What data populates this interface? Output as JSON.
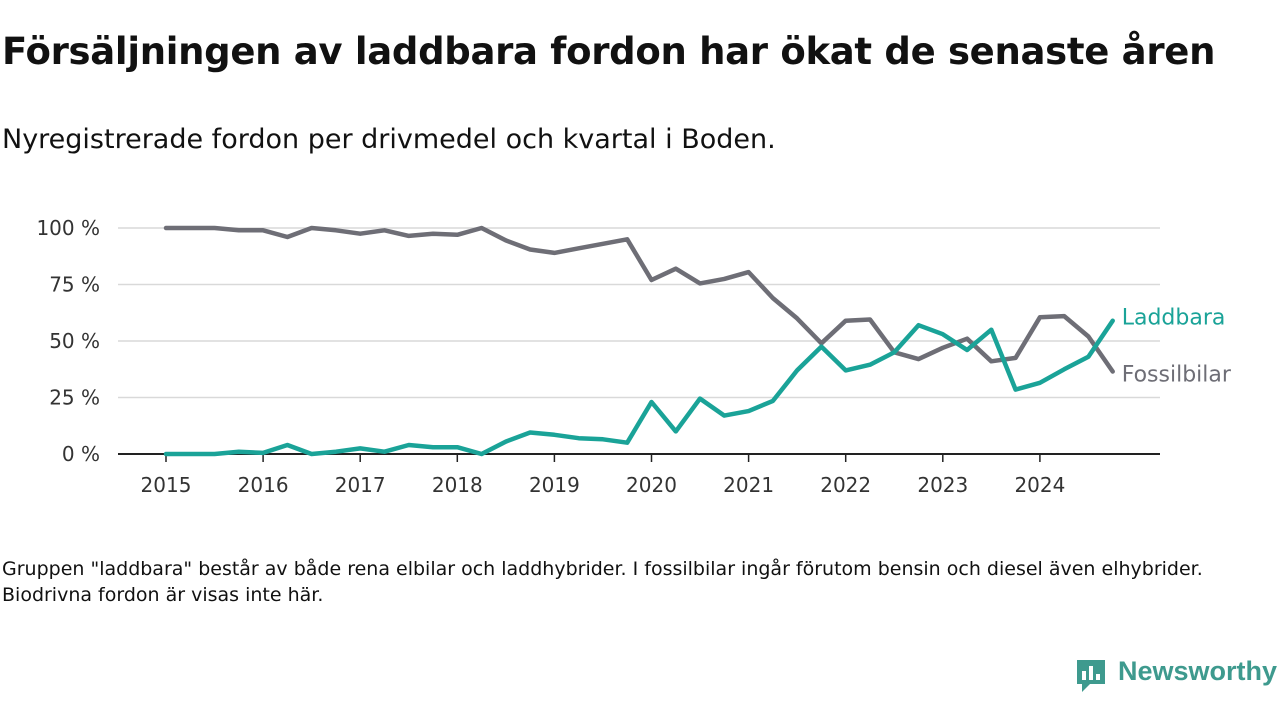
{
  "title": "Försäljningen av laddbara fordon har ökat de senaste åren",
  "subtitle": "Nyregistrerade fordon per drivmedel och kvartal i Boden.",
  "footnote": "Gruppen \"laddbara\" består av både rena elbilar och laddhybrider. I fossilbilar ingår förutom bensin och diesel även elhybrider. Biodrivna fordon är visas inte här.",
  "brand": {
    "name": "Newsworthy",
    "icon": "newsworthy-logo-icon",
    "color": "#3e9a8e"
  },
  "chart_data": {
    "type": "line",
    "x_start_year": 2015,
    "x_step": 0.25,
    "xlim": [
      2014.75,
      2025.2
    ],
    "ylim": [
      0,
      100
    ],
    "y_ticks": [
      0,
      25,
      50,
      75,
      100
    ],
    "y_tick_labels": [
      "0 %",
      "25 %",
      "50 %",
      "75 %",
      "100 %"
    ],
    "x_ticks": [
      2015,
      2016,
      2017,
      2018,
      2019,
      2020,
      2021,
      2022,
      2023,
      2024
    ],
    "x_tick_labels": [
      "2015",
      "2016",
      "2017",
      "2018",
      "2019",
      "2020",
      "2021",
      "2022",
      "2023",
      "2024"
    ],
    "grid": true,
    "legend": "end-of-line labels",
    "series": [
      {
        "name": "Laddbara",
        "color": "#1aa398",
        "values": [
          0,
          0,
          0,
          1,
          0.5,
          4,
          0,
          1,
          2.5,
          1,
          4,
          3,
          3,
          0,
          5.5,
          9.5,
          8.5,
          7,
          6.5,
          5,
          23,
          10,
          24.5,
          17,
          19,
          23.5,
          37,
          47.5,
          37,
          39.5,
          45,
          57,
          53,
          46,
          55,
          28.5,
          31.5,
          37.5,
          43,
          59
        ]
      },
      {
        "name": "Fossilbilar",
        "color": "#6e6e76",
        "values": [
          100,
          100,
          100,
          99,
          99,
          96,
          100,
          99,
          97.5,
          99,
          96.5,
          97.5,
          97,
          100,
          94.5,
          90.5,
          89,
          91,
          93,
          95,
          77,
          82,
          75.5,
          77.5,
          80.5,
          69,
          60,
          49,
          59,
          59.5,
          45,
          42,
          47,
          51,
          41,
          42.5,
          60.5,
          61,
          52,
          36.5
        ]
      }
    ]
  }
}
